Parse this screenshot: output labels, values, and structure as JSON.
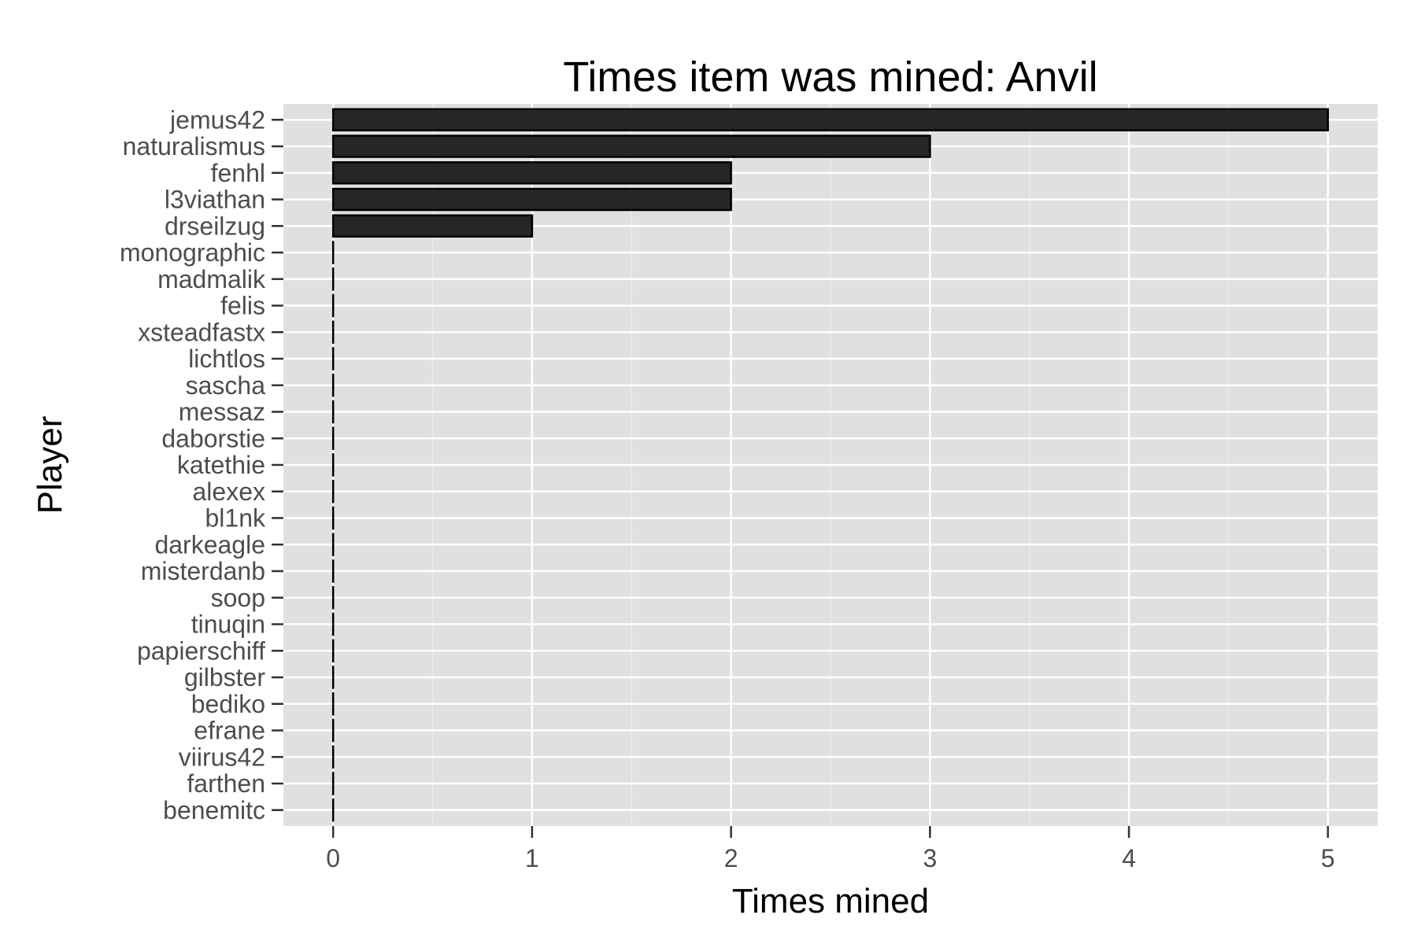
{
  "chart_data": {
    "type": "bar",
    "orientation": "horizontal",
    "title": "Times item was mined: Anvil",
    "xlabel": "Times mined",
    "ylabel": "Player",
    "xlim": [
      -0.25,
      5.25
    ],
    "xticks": [
      0,
      1,
      2,
      3,
      4,
      5
    ],
    "grid": true,
    "categories": [
      "jemus42",
      "naturalismus",
      "fenhl",
      "l3viathan",
      "drseilzug",
      "monographic",
      "madmalik",
      "felis",
      "xsteadfastx",
      "lichtlos",
      "sascha",
      "messaz",
      "daborstie",
      "katethie",
      "alexex",
      "bl1nk",
      "darkeagle",
      "misterdanb",
      "soop",
      "tinuqin",
      "papierschiff",
      "gilbster",
      "bediko",
      "efrane",
      "viirus42",
      "farthen",
      "benemitc"
    ],
    "values": [
      5,
      3,
      2,
      2,
      1,
      0,
      0,
      0,
      0,
      0,
      0,
      0,
      0,
      0,
      0,
      0,
      0,
      0,
      0,
      0,
      0,
      0,
      0,
      0,
      0,
      0,
      0
    ],
    "colors": {
      "bar_fill": "#262626",
      "bar_stroke": "#000000",
      "panel": "#e0e0e0",
      "grid_major": "#ffffff",
      "grid_minor": "#ececec",
      "tick_text": "#4d4d4d"
    }
  }
}
